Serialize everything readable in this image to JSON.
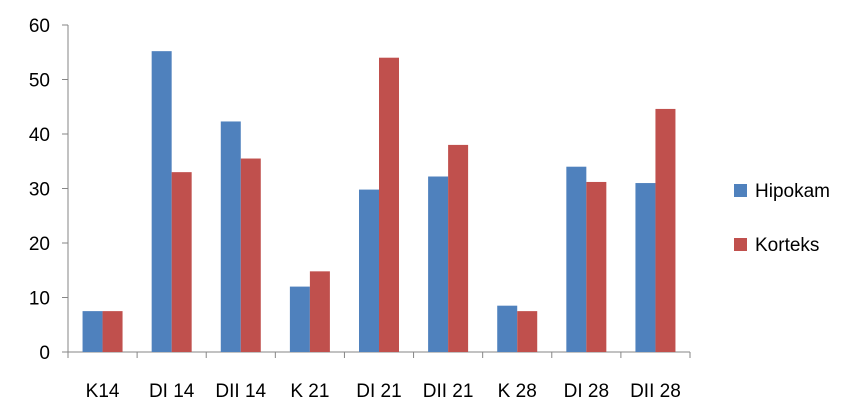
{
  "chart_data": {
    "type": "bar",
    "categories": [
      "K14",
      "DI 14",
      "DII 14",
      "K 21",
      "DI 21",
      "DII 21",
      "K 28",
      "DI 28",
      "DII 28"
    ],
    "series": [
      {
        "name": "Hipokam",
        "color": "#4f81bd",
        "values": [
          7.5,
          55.2,
          42.3,
          12,
          29.8,
          32.2,
          8.5,
          34,
          31
        ]
      },
      {
        "name": "Korteks",
        "color": "#c0504d",
        "values": [
          7.5,
          33,
          35.5,
          14.8,
          54,
          38,
          7.5,
          31.2,
          44.6
        ]
      }
    ],
    "title": "",
    "xlabel": "",
    "ylabel": "",
    "ylim": [
      0,
      60
    ],
    "yticks": [
      "0",
      "10",
      "20",
      "30",
      "40",
      "50",
      "60"
    ],
    "grid": false,
    "legend": "right"
  }
}
